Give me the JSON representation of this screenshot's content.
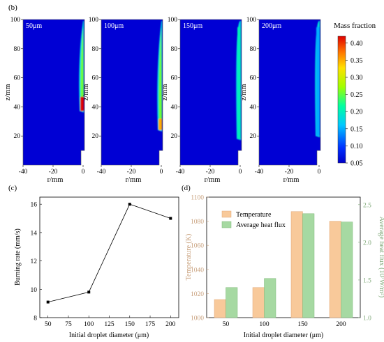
{
  "chart_data": [
    {
      "panel": "(b)",
      "type": "heatmap",
      "colorbar": {
        "title": "Mass fraction",
        "ticks": [
          "0.40",
          "0.35",
          "0.30",
          "0.25",
          "0.20",
          "0.15",
          "0.10",
          "0.05"
        ],
        "range": [
          0.05,
          0.42
        ]
      },
      "ylabel": "z/mm",
      "xlabel": "r/mm",
      "yticks": [
        "100",
        "80",
        "60",
        "40",
        "20"
      ],
      "xticks": [
        "-40",
        "-20",
        "0"
      ],
      "xlim": [
        -40,
        0
      ],
      "ylim": [
        0,
        100
      ],
      "maps": [
        {
          "label": "50μm",
          "max_fraction": 0.42,
          "hot_z": [
            37,
            47
          ]
        },
        {
          "label": "100μm",
          "max_fraction": 0.35,
          "hot_z": [
            24,
            32
          ]
        },
        {
          "label": "150μm",
          "max_fraction": 0.2,
          "hot_z": [
            18,
            95
          ]
        },
        {
          "label": "200μm",
          "max_fraction": 0.15,
          "hot_z": [
            20,
            95
          ]
        }
      ]
    },
    {
      "panel": "(c)",
      "type": "line",
      "xlabel": "Initial droplet diameter (μm)",
      "ylabel": "Burning rate (mm/s)",
      "x": [
        50,
        100,
        150,
        200
      ],
      "y": [
        9.1,
        9.8,
        16.0,
        15.0
      ],
      "xlim": [
        40,
        210
      ],
      "ylim": [
        8,
        16.5
      ],
      "xticks": [
        "50",
        "75",
        "100",
        "125",
        "150",
        "175",
        "200"
      ],
      "yticks": [
        "8",
        "10",
        "12",
        "14",
        "16"
      ],
      "grid": false
    },
    {
      "panel": "(d)",
      "type": "bar",
      "xlabel": "Initial droplet diameter (μm)",
      "categories": [
        "50",
        "100",
        "150",
        "200"
      ],
      "series": [
        {
          "name": "Temperature",
          "values": [
            1015,
            1025,
            1088,
            1080
          ],
          "color": "#f8c99a",
          "axis": "left"
        },
        {
          "name": "Average heat flux",
          "values": [
            1.4,
            1.52,
            2.38,
            2.27
          ],
          "color": "#a6d9a2",
          "axis": "right"
        }
      ],
      "ylabel_left": "Temperature (K)",
      "ylabel_right": "Average heat flux (10⁷W/m²)",
      "ylim_left": [
        1000,
        1100
      ],
      "ylim_right": [
        1.0,
        2.6
      ],
      "yticks_left": [
        "1000",
        "1020",
        "1040",
        "1060",
        "1080",
        "1100"
      ],
      "yticks_right": [
        "1.0",
        "1.5",
        "2.0",
        "2.5"
      ],
      "left_axis_color": "#c8a07c",
      "right_axis_color": "#7fa878",
      "legend": "top-left"
    }
  ]
}
